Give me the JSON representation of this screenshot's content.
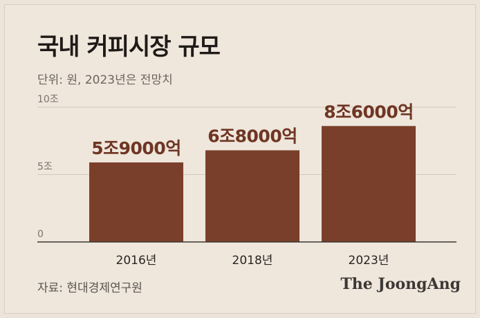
{
  "header": {
    "title": "국내 커피시장 규모",
    "subtitle": "단위: 원, 2023년은 전망치"
  },
  "footer": {
    "source": "자료: 현대경제연구원",
    "brand": "The JoongAng"
  },
  "colors": {
    "bar": "#7a3f2a",
    "label": "#6e3623",
    "grid": "#d2c8bd",
    "axis": "#3a3532",
    "background": "#efe6dc"
  },
  "chart_data": {
    "type": "bar",
    "categories": [
      "2016년",
      "2018년",
      "2023년"
    ],
    "values": [
      5.9,
      6.8,
      8.6
    ],
    "data_labels": [
      "5조9000억",
      "6조8000억",
      "8조6000억"
    ],
    "yticks": [
      {
        "value": 0,
        "label": "0"
      },
      {
        "value": 5,
        "label": "5조"
      },
      {
        "value": 10,
        "label": "10조"
      }
    ],
    "ylim": [
      0,
      10
    ],
    "grid": true
  }
}
